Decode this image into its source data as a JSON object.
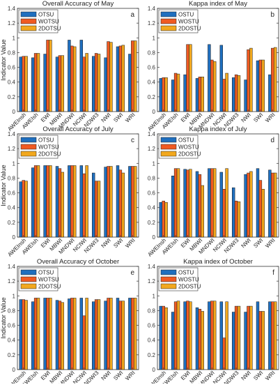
{
  "colors": {
    "series": [
      "#1f6fbf",
      "#f05a22",
      "#f2a81e"
    ],
    "edge": "#1a1a1a"
  },
  "chart_data": [
    {
      "type": "bar",
      "panel_letter": "a",
      "title": "Overall Accuracy of May",
      "ylabel": "Indicator Value",
      "xlabel": "",
      "ylim": [
        0,
        1.4
      ],
      "yticks": [
        "0",
        "0.2",
        "0.4",
        "0.6",
        "0.8",
        "1",
        "1.2",
        "1.4"
      ],
      "legend_position": "top-left",
      "grid": false,
      "categories": [
        "AWEInsh",
        "AWEIsh",
        "EWI",
        "MBWI",
        "MNDWI",
        "NCIWI",
        "NDWI3",
        "NWI",
        "SWI",
        "WRI"
      ],
      "series": [
        {
          "name": "OTSU",
          "values": [
            0.74,
            0.73,
            0.78,
            0.74,
            0.97,
            0.97,
            0.75,
            0.73,
            0.88,
            0.78
          ]
        },
        {
          "name": "WOTSU",
          "values": [
            0.75,
            0.79,
            0.97,
            0.76,
            0.89,
            0.74,
            0.79,
            0.95,
            0.89,
            0.96
          ]
        },
        {
          "name": "2DOTSU",
          "values": [
            0.75,
            0.79,
            0.97,
            0.76,
            0.88,
            0.79,
            0.78,
            0.94,
            0.9,
            0.96
          ]
        }
      ]
    },
    {
      "type": "bar",
      "panel_letter": "b",
      "title": "Kappa index of May",
      "ylabel": "",
      "xlabel": "",
      "ylim": [
        0,
        1.4
      ],
      "yticks": [
        "0",
        "0.2",
        "0.4",
        "0.6",
        "0.8",
        "1",
        "1.2",
        "1.4"
      ],
      "legend_position": "top-left",
      "grid": false,
      "categories": [
        "AWEInsh",
        "AWEIsh",
        "EWI",
        "MBWI",
        "MNDWI",
        "NCIWI",
        "NDWI3",
        "NWI",
        "SWI",
        "WRI"
      ],
      "series": [
        {
          "name": "OSTU",
          "values": [
            0.45,
            0.43,
            0.5,
            0.45,
            0.91,
            0.9,
            0.46,
            0.43,
            0.69,
            0.5
          ]
        },
        {
          "name": "WOSTU",
          "values": [
            0.46,
            0.52,
            0.91,
            0.47,
            0.7,
            0.44,
            0.5,
            0.84,
            0.7,
            0.86
          ]
        },
        {
          "name": "2DOSTU",
          "values": [
            0.46,
            0.51,
            0.91,
            0.47,
            0.68,
            0.52,
            0.49,
            0.86,
            0.7,
            0.87
          ]
        }
      ]
    },
    {
      "type": "bar",
      "panel_letter": "c",
      "title": "Overall Accuracy of July",
      "ylabel": "Indicator Value",
      "xlabel": "",
      "ylim": [
        0,
        1.4
      ],
      "yticks": [
        "0",
        "0.2",
        "0.4",
        "0.6",
        "0.8",
        "1",
        "1.2",
        "1.4"
      ],
      "legend_position": "top-left",
      "grid": false,
      "categories": [
        "AWEInsh",
        "AWEIsh",
        "EWI",
        "MBWI",
        "MNDWI",
        "NCIWI",
        "NDWI3",
        "NWI",
        "SWI",
        "WRI"
      ],
      "series": [
        {
          "name": "OTSU",
          "values": [
            0.75,
            0.94,
            0.97,
            0.96,
            0.97,
            0.97,
            0.87,
            0.95,
            0.97,
            0.96
          ]
        },
        {
          "name": "WOTSU",
          "values": [
            0.77,
            0.97,
            0.97,
            0.93,
            0.97,
            0.86,
            0.76,
            0.96,
            0.91,
            0.96
          ]
        },
        {
          "name": "2DOTSU",
          "values": [
            0.76,
            0.97,
            0.97,
            0.88,
            0.97,
            0.97,
            0.76,
            0.96,
            0.87,
            0.96
          ]
        }
      ]
    },
    {
      "type": "bar",
      "panel_letter": "d",
      "title": "Kappa index of July",
      "ylabel": "",
      "xlabel": "",
      "ylim": [
        0,
        1.4
      ],
      "yticks": [
        "0",
        "0.2",
        "0.4",
        "0.6",
        "0.8",
        "1",
        "1.2",
        "1.4"
      ],
      "legend_position": "top-left",
      "grid": false,
      "categories": [
        "AWEInsh",
        "AWEIsh",
        "EWI",
        "MBWI",
        "MNDWI",
        "NCIWI",
        "NDWI3",
        "NWI",
        "SWI",
        "WRI"
      ],
      "series": [
        {
          "name": "OSTU",
          "values": [
            0.47,
            0.83,
            0.92,
            0.89,
            0.93,
            0.88,
            0.67,
            0.85,
            0.93,
            0.91
          ]
        },
        {
          "name": "WOSTU",
          "values": [
            0.49,
            0.93,
            0.91,
            0.85,
            0.93,
            0.65,
            0.49,
            0.87,
            0.77,
            0.87
          ]
        },
        {
          "name": "2DOSTU",
          "values": [
            0.47,
            0.93,
            0.92,
            0.7,
            0.93,
            0.93,
            0.48,
            0.89,
            0.65,
            0.87
          ]
        }
      ]
    },
    {
      "type": "bar",
      "panel_letter": "e",
      "title": "Overall Accuracy of October",
      "ylabel": "Indicator Value",
      "xlabel": "",
      "ylim": [
        0,
        1.4
      ],
      "yticks": [
        "0",
        "0.2",
        "0.4",
        "0.6",
        "0.8",
        "1",
        "1.2",
        "1.4"
      ],
      "legend_position": "top-left",
      "grid": false,
      "categories": [
        "AWEInsh",
        "AWEIsh",
        "EWI",
        "MBWI",
        "MNDWI",
        "NCIWI",
        "NDWI3",
        "NWI",
        "SWI",
        "WRI"
      ],
      "series": [
        {
          "name": "OTSU",
          "values": [
            0.95,
            0.92,
            0.97,
            0.94,
            0.96,
            0.97,
            0.92,
            0.93,
            0.97,
            0.97
          ]
        },
        {
          "name": "WOTSU",
          "values": [
            0.95,
            0.97,
            0.97,
            0.93,
            0.97,
            0.73,
            0.95,
            0.97,
            0.93,
            0.97
          ]
        },
        {
          "name": "2DOTSU",
          "values": [
            0.94,
            0.97,
            0.97,
            0.91,
            0.97,
            0.97,
            0.95,
            0.97,
            0.93,
            0.97
          ]
        }
      ]
    },
    {
      "type": "bar",
      "panel_letter": "f",
      "title": "Kappa index of October",
      "ylabel": "",
      "xlabel": "",
      "ylim": [
        0,
        1.4
      ],
      "yticks": [
        "0",
        "0.2",
        "0.4",
        "0.6",
        "0.8",
        "1",
        "1.2",
        "1.4"
      ],
      "legend_position": "top-left",
      "grid": false,
      "categories": [
        "AWEInsh",
        "AWEIsh",
        "EWI",
        "MBWI",
        "MNDWI",
        "NCIWI",
        "NDWI3",
        "NWI",
        "SWI",
        "WRI"
      ],
      "series": [
        {
          "name": "OSTU",
          "values": [
            0.86,
            0.78,
            0.92,
            0.84,
            0.92,
            0.92,
            0.78,
            0.78,
            0.92,
            0.92
          ]
        },
        {
          "name": "WOSTU",
          "values": [
            0.86,
            0.92,
            0.93,
            0.82,
            0.93,
            0.43,
            0.86,
            0.86,
            0.79,
            0.92
          ]
        },
        {
          "name": "2DOSTU",
          "values": [
            0.84,
            0.93,
            0.92,
            0.79,
            0.93,
            0.92,
            0.86,
            0.86,
            0.79,
            0.92
          ]
        }
      ]
    }
  ]
}
